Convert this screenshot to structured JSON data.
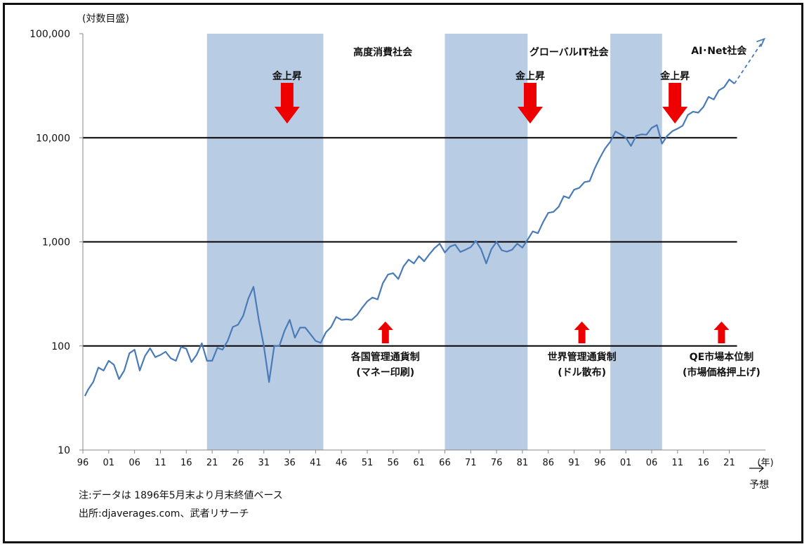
{
  "chart_data": {
    "type": "line",
    "y_axis_label": "(対数目盛)",
    "y_scale": "log",
    "ylim": [
      10,
      100000
    ],
    "y_ticks": [
      10,
      100,
      1000,
      10000,
      100000
    ],
    "y_tick_labels": [
      "10",
      "100",
      "1,000",
      "10,000",
      "100,000"
    ],
    "x_unit_label": "(年)",
    "forecast_label": "予想",
    "xlim": [
      1896,
      2028
    ],
    "x_tick_years": [
      1896,
      1901,
      1906,
      1911,
      1916,
      1921,
      1926,
      1931,
      1936,
      1941,
      1946,
      1951,
      1956,
      1961,
      1966,
      1971,
      1976,
      1981,
      1986,
      1991,
      1996,
      2001,
      2006,
      2011,
      2016,
      2021
    ],
    "x_tick_labels": [
      "96",
      "01",
      "06",
      "11",
      "16",
      "21",
      "26",
      "31",
      "36",
      "41",
      "46",
      "51",
      "56",
      "61",
      "66",
      "71",
      "76",
      "81",
      "86",
      "91",
      "96",
      "01",
      "06",
      "11",
      "16",
      "21"
    ],
    "reference_lines": [
      100,
      1000,
      10000
    ],
    "shaded_periods": [
      [
        1920,
        1942.5
      ],
      [
        1966,
        1982
      ],
      [
        1998,
        2008
      ]
    ],
    "series": [
      {
        "color": "#4a7bb7",
        "points": [
          [
            1896.4,
            33
          ],
          [
            1897,
            38
          ],
          [
            1898,
            45
          ],
          [
            1899,
            62
          ],
          [
            1900,
            58
          ],
          [
            1901,
            72
          ],
          [
            1902,
            66
          ],
          [
            1903,
            48
          ],
          [
            1904,
            58
          ],
          [
            1905,
            85
          ],
          [
            1906,
            92
          ],
          [
            1907,
            58
          ],
          [
            1908,
            80
          ],
          [
            1909,
            95
          ],
          [
            1910,
            78
          ],
          [
            1911,
            82
          ],
          [
            1912,
            88
          ],
          [
            1913,
            76
          ],
          [
            1914,
            72
          ],
          [
            1915,
            98
          ],
          [
            1916,
            94
          ],
          [
            1917,
            70
          ],
          [
            1918,
            82
          ],
          [
            1919,
            106
          ],
          [
            1920,
            72
          ],
          [
            1921,
            72
          ],
          [
            1922,
            96
          ],
          [
            1923,
            92
          ],
          [
            1924,
            112
          ],
          [
            1925,
            152
          ],
          [
            1926,
            160
          ],
          [
            1927,
            195
          ],
          [
            1928,
            285
          ],
          [
            1929,
            370
          ],
          [
            1930,
            180
          ],
          [
            1931,
            100
          ],
          [
            1932,
            45
          ],
          [
            1933,
            100
          ],
          [
            1934,
            100
          ],
          [
            1935,
            140
          ],
          [
            1936,
            178
          ],
          [
            1937,
            120
          ],
          [
            1938,
            150
          ],
          [
            1939,
            150
          ],
          [
            1940,
            130
          ],
          [
            1941,
            112
          ],
          [
            1942,
            107
          ],
          [
            1943,
            135
          ],
          [
            1944,
            152
          ],
          [
            1945,
            190
          ],
          [
            1946,
            178
          ],
          [
            1947,
            180
          ],
          [
            1948,
            178
          ],
          [
            1949,
            198
          ],
          [
            1950,
            232
          ],
          [
            1951,
            268
          ],
          [
            1952,
            292
          ],
          [
            1953,
            280
          ],
          [
            1954,
            400
          ],
          [
            1955,
            485
          ],
          [
            1956,
            500
          ],
          [
            1957,
            440
          ],
          [
            1958,
            580
          ],
          [
            1959,
            675
          ],
          [
            1960,
            620
          ],
          [
            1961,
            730
          ],
          [
            1962,
            650
          ],
          [
            1963,
            760
          ],
          [
            1964,
            870
          ],
          [
            1965,
            960
          ],
          [
            1966,
            790
          ],
          [
            1967,
            900
          ],
          [
            1968,
            940
          ],
          [
            1969,
            800
          ],
          [
            1970,
            840
          ],
          [
            1971,
            890
          ],
          [
            1972,
            1020
          ],
          [
            1973,
            850
          ],
          [
            1974,
            620
          ],
          [
            1975,
            850
          ],
          [
            1976,
            1000
          ],
          [
            1977,
            830
          ],
          [
            1978,
            805
          ],
          [
            1979,
            840
          ],
          [
            1980,
            960
          ],
          [
            1981,
            880
          ],
          [
            1982,
            1050
          ],
          [
            1983,
            1260
          ],
          [
            1984,
            1210
          ],
          [
            1985,
            1550
          ],
          [
            1986,
            1900
          ],
          [
            1987,
            1940
          ],
          [
            1988,
            2170
          ],
          [
            1989,
            2750
          ],
          [
            1990,
            2630
          ],
          [
            1991,
            3170
          ],
          [
            1992,
            3300
          ],
          [
            1993,
            3750
          ],
          [
            1994,
            3830
          ],
          [
            1995,
            5100
          ],
          [
            1996,
            6450
          ],
          [
            1997,
            7900
          ],
          [
            1998,
            9180
          ],
          [
            1999,
            11500
          ],
          [
            2000,
            10790
          ],
          [
            2001,
            10020
          ],
          [
            2002,
            8340
          ],
          [
            2003,
            10450
          ],
          [
            2004,
            10780
          ],
          [
            2005,
            10720
          ],
          [
            2006,
            12460
          ],
          [
            2007,
            13260
          ],
          [
            2008,
            8780
          ],
          [
            2009,
            10430
          ],
          [
            2010,
            11580
          ],
          [
            2011,
            12220
          ],
          [
            2012,
            13100
          ],
          [
            2013,
            16580
          ],
          [
            2014,
            17820
          ],
          [
            2015,
            17430
          ],
          [
            2016,
            19760
          ],
          [
            2017,
            24720
          ],
          [
            2018,
            23330
          ],
          [
            2019,
            28540
          ],
          [
            2020,
            30600
          ],
          [
            2021,
            36300
          ],
          [
            2022,
            33150
          ]
        ]
      }
    ],
    "forecast_segment": [
      [
        2022,
        33150
      ],
      [
        2027.5,
        85000
      ]
    ],
    "era_labels": [
      "高度消費社会",
      "グローバルIT社会",
      "AI･Net社会"
    ],
    "gold_arrows": [
      {
        "label": "金上昇",
        "year": 1935.5,
        "top_value": 82000
      },
      {
        "label": "金上昇",
        "year": 1982.5,
        "top_value": 82000
      },
      {
        "label": "金上昇",
        "year": 2010.5,
        "top_value": 82000
      }
    ],
    "currency_regimes": [
      {
        "year": 1954.5,
        "lines": [
          "各国管理通貨制",
          "(マネー印刷)"
        ]
      },
      {
        "year": 1992.5,
        "lines": [
          "世界管理通貨制",
          "(ドル散布)"
        ]
      },
      {
        "year": 2019.5,
        "lines": [
          "QE市場本位制",
          "(市場価格押上げ)"
        ]
      }
    ]
  },
  "notes": {
    "note": "注:データは 1896年5月末より月末終値ベース",
    "source": "出所:djaverages.com、武者リサーチ"
  }
}
